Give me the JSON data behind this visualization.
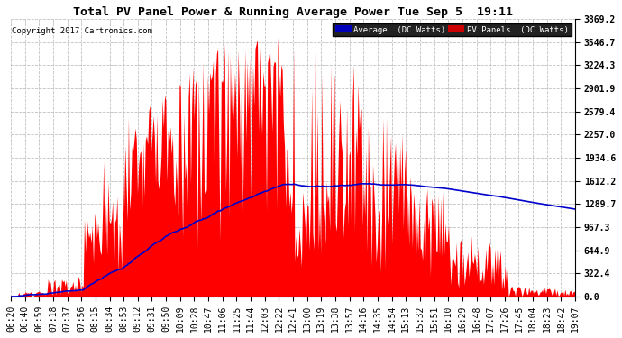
{
  "title": "Total PV Panel Power & Running Average Power Tue Sep 5  19:11",
  "copyright": "Copyright 2017 Cartronics.com",
  "yticks": [
    0.0,
    322.4,
    644.9,
    967.3,
    1289.7,
    1612.2,
    1934.6,
    2257.0,
    2579.4,
    2901.9,
    3224.3,
    3546.7,
    3869.2
  ],
  "ymax": 3869.2,
  "ymin": 0.0,
  "background_color": "#ffffff",
  "grid_color": "#c0c0c0",
  "bar_color": "#ff0000",
  "avg_color": "#0000cc",
  "title_fontsize": 9.5,
  "copyright_fontsize": 6.5,
  "axis_fontsize": 7,
  "xtick_labels": [
    "06:20",
    "06:40",
    "06:59",
    "07:18",
    "07:37",
    "07:56",
    "08:15",
    "08:34",
    "08:53",
    "09:12",
    "09:31",
    "09:50",
    "10:09",
    "10:28",
    "10:47",
    "11:06",
    "11:25",
    "11:44",
    "12:03",
    "12:22",
    "12:41",
    "13:00",
    "13:19",
    "13:38",
    "13:57",
    "14:16",
    "14:35",
    "14:54",
    "15:13",
    "15:32",
    "15:51",
    "16:10",
    "16:29",
    "16:48",
    "17:07",
    "17:26",
    "17:45",
    "18:04",
    "18:23",
    "18:42",
    "19:07"
  ]
}
